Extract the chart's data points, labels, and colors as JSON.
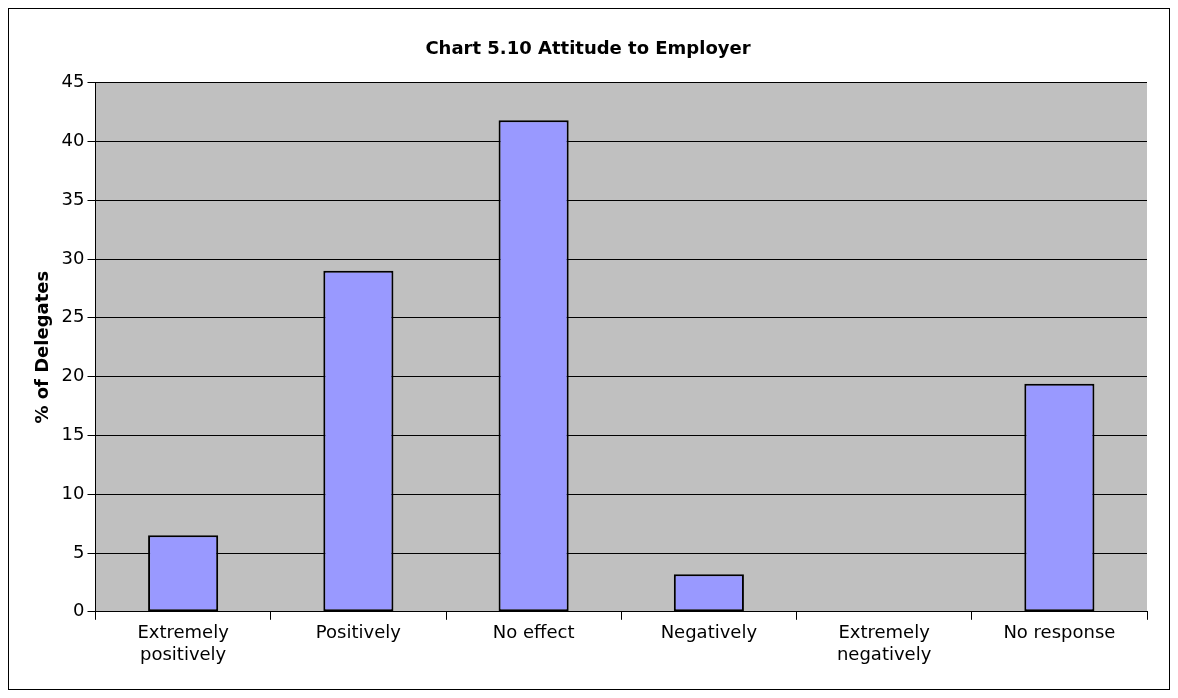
{
  "chart_data": {
    "type": "bar",
    "title": "Chart 5.10 Attitude to Employer",
    "ylabel": "% of Delegates",
    "categories": [
      "Extremely positively",
      "Positively",
      "No effect",
      "Negatively",
      "Extremely negatively",
      "No response"
    ],
    "values": [
      6.5,
      29.0,
      41.8,
      3.2,
      0,
      19.4
    ],
    "color": "#9999ff",
    "ylim": [
      0,
      45
    ],
    "yticks": [
      0,
      5,
      10,
      15,
      20,
      25,
      30,
      35,
      40,
      45
    ],
    "grid": "y",
    "legend": false
  }
}
